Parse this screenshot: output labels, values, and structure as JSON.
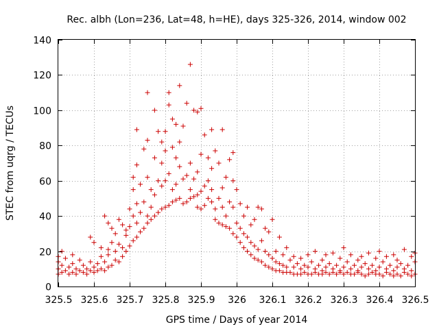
{
  "chart_data": {
    "type": "scatter",
    "title": "Rec. albh (Lon=236, Lat=48, h=HE), days 325-326, 2014, window 002",
    "xlabel": "GPS time / Days of year 2014",
    "ylabel": "STEC from uqrg / TECUs",
    "xlim": [
      325.5,
      326.5
    ],
    "ylim": [
      0,
      140
    ],
    "grid": true,
    "marker": "plus",
    "color": "#cc0000",
    "x_tick_labels": [
      "325.5",
      "325.6",
      "325.7",
      "325.8",
      "325.9",
      "326",
      "326.1",
      "326.2",
      "326.3",
      "326.4",
      "326.5"
    ],
    "y_tick_labels": [
      "0",
      "20",
      "40",
      "60",
      "80",
      "100",
      "120",
      "140"
    ],
    "series": [
      {
        "name": "STEC",
        "points": [
          [
            325.5,
            7
          ],
          [
            325.5,
            10
          ],
          [
            325.5,
            14
          ],
          [
            325.5,
            17
          ],
          [
            325.51,
            8
          ],
          [
            325.51,
            12
          ],
          [
            325.51,
            20
          ],
          [
            325.52,
            9
          ],
          [
            325.52,
            16
          ],
          [
            325.53,
            7
          ],
          [
            325.53,
            11
          ],
          [
            325.54,
            8
          ],
          [
            325.54,
            13
          ],
          [
            325.54,
            18
          ],
          [
            325.55,
            7
          ],
          [
            325.55,
            10
          ],
          [
            325.56,
            9
          ],
          [
            325.56,
            15
          ],
          [
            325.57,
            8
          ],
          [
            325.57,
            12
          ],
          [
            325.58,
            7
          ],
          [
            325.58,
            10
          ],
          [
            325.59,
            9
          ],
          [
            325.59,
            14
          ],
          [
            325.59,
            28
          ],
          [
            325.6,
            8
          ],
          [
            325.6,
            11
          ],
          [
            325.6,
            25
          ],
          [
            325.61,
            9
          ],
          [
            325.61,
            13
          ],
          [
            325.62,
            10
          ],
          [
            325.62,
            17
          ],
          [
            325.62,
            22
          ],
          [
            325.63,
            9
          ],
          [
            325.63,
            14
          ],
          [
            325.63,
            40
          ],
          [
            325.64,
            11
          ],
          [
            325.64,
            18
          ],
          [
            325.64,
            21
          ],
          [
            325.64,
            36
          ],
          [
            325.65,
            12
          ],
          [
            325.65,
            25
          ],
          [
            325.65,
            33
          ],
          [
            325.66,
            15
          ],
          [
            325.66,
            20
          ],
          [
            325.66,
            30
          ],
          [
            325.67,
            14
          ],
          [
            325.67,
            24
          ],
          [
            325.67,
            38
          ],
          [
            325.68,
            17
          ],
          [
            325.68,
            22
          ],
          [
            325.68,
            35
          ],
          [
            325.69,
            20
          ],
          [
            325.69,
            29
          ],
          [
            325.69,
            32
          ],
          [
            325.7,
            23
          ],
          [
            325.7,
            34
          ],
          [
            325.7,
            44
          ],
          [
            325.71,
            26
          ],
          [
            325.71,
            40
          ],
          [
            325.71,
            55
          ],
          [
            325.71,
            62
          ],
          [
            325.72,
            28
          ],
          [
            325.72,
            36
          ],
          [
            325.72,
            47
          ],
          [
            325.72,
            69
          ],
          [
            325.72,
            89
          ],
          [
            325.73,
            31
          ],
          [
            325.73,
            42
          ],
          [
            325.73,
            58
          ],
          [
            325.74,
            33
          ],
          [
            325.74,
            48
          ],
          [
            325.74,
            78
          ],
          [
            325.75,
            36
          ],
          [
            325.75,
            40
          ],
          [
            325.75,
            62
          ],
          [
            325.75,
            83
          ],
          [
            325.75,
            110
          ],
          [
            325.76,
            38
          ],
          [
            325.76,
            45
          ],
          [
            325.76,
            55
          ],
          [
            325.77,
            40
          ],
          [
            325.77,
            52
          ],
          [
            325.77,
            73
          ],
          [
            325.77,
            100
          ],
          [
            325.78,
            42
          ],
          [
            325.78,
            60
          ],
          [
            325.78,
            88
          ],
          [
            325.79,
            44
          ],
          [
            325.79,
            57
          ],
          [
            325.79,
            70
          ],
          [
            325.79,
            82
          ],
          [
            325.8,
            45
          ],
          [
            325.8,
            60
          ],
          [
            325.8,
            77
          ],
          [
            325.8,
            88
          ],
          [
            325.81,
            46
          ],
          [
            325.81,
            64
          ],
          [
            325.81,
            103
          ],
          [
            325.81,
            110
          ],
          [
            325.82,
            48
          ],
          [
            325.82,
            55
          ],
          [
            325.82,
            79
          ],
          [
            325.82,
            95
          ],
          [
            325.83,
            49
          ],
          [
            325.83,
            58
          ],
          [
            325.83,
            73
          ],
          [
            325.83,
            92
          ],
          [
            325.84,
            50
          ],
          [
            325.84,
            68
          ],
          [
            325.84,
            82
          ],
          [
            325.84,
            114
          ],
          [
            325.85,
            47
          ],
          [
            325.85,
            61
          ],
          [
            325.85,
            91
          ],
          [
            325.86,
            48
          ],
          [
            325.86,
            63
          ],
          [
            325.86,
            104
          ],
          [
            325.87,
            50
          ],
          [
            325.87,
            55
          ],
          [
            325.87,
            70
          ],
          [
            325.87,
            126
          ],
          [
            325.88,
            51
          ],
          [
            325.88,
            61
          ],
          [
            325.88,
            100
          ],
          [
            325.89,
            45
          ],
          [
            325.89,
            52
          ],
          [
            325.89,
            65
          ],
          [
            325.89,
            99
          ],
          [
            325.9,
            44
          ],
          [
            325.9,
            54
          ],
          [
            325.9,
            75
          ],
          [
            325.9,
            101
          ],
          [
            325.91,
            46
          ],
          [
            325.91,
            57
          ],
          [
            325.91,
            86
          ],
          [
            325.92,
            50
          ],
          [
            325.92,
            60
          ],
          [
            325.92,
            73
          ],
          [
            325.93,
            48
          ],
          [
            325.93,
            55
          ],
          [
            325.93,
            67
          ],
          [
            325.93,
            89
          ],
          [
            325.94,
            38
          ],
          [
            325.94,
            44
          ],
          [
            325.94,
            77
          ],
          [
            325.95,
            36
          ],
          [
            325.95,
            50
          ],
          [
            325.95,
            70
          ],
          [
            325.96,
            35
          ],
          [
            325.96,
            45
          ],
          [
            325.96,
            56
          ],
          [
            325.96,
            89
          ],
          [
            325.97,
            34
          ],
          [
            325.97,
            40
          ],
          [
            325.97,
            62
          ],
          [
            325.98,
            33
          ],
          [
            325.98,
            48
          ],
          [
            325.98,
            72
          ],
          [
            325.99,
            30
          ],
          [
            325.99,
            45
          ],
          [
            325.99,
            60
          ],
          [
            325.99,
            76
          ],
          [
            326.0,
            28
          ],
          [
            326.0,
            36
          ],
          [
            326.0,
            55
          ],
          [
            326.01,
            25
          ],
          [
            326.01,
            33
          ],
          [
            326.01,
            47
          ],
          [
            326.02,
            22
          ],
          [
            326.02,
            30
          ],
          [
            326.02,
            40
          ],
          [
            326.03,
            20
          ],
          [
            326.03,
            28
          ],
          [
            326.03,
            45
          ],
          [
            326.04,
            18
          ],
          [
            326.04,
            25
          ],
          [
            326.04,
            35
          ],
          [
            326.05,
            16
          ],
          [
            326.05,
            23
          ],
          [
            326.05,
            38
          ],
          [
            326.06,
            15
          ],
          [
            326.06,
            21
          ],
          [
            326.06,
            45
          ],
          [
            326.07,
            14
          ],
          [
            326.07,
            26
          ],
          [
            326.07,
            44
          ],
          [
            326.08,
            12
          ],
          [
            326.08,
            20
          ],
          [
            326.08,
            33
          ],
          [
            326.09,
            11
          ],
          [
            326.09,
            18
          ],
          [
            326.09,
            31
          ],
          [
            326.1,
            10
          ],
          [
            326.1,
            16
          ],
          [
            326.1,
            38
          ],
          [
            326.11,
            9
          ],
          [
            326.11,
            14
          ],
          [
            326.11,
            20
          ],
          [
            326.12,
            9
          ],
          [
            326.12,
            13
          ],
          [
            326.12,
            28
          ],
          [
            326.13,
            8
          ],
          [
            326.13,
            12
          ],
          [
            326.13,
            18
          ],
          [
            326.14,
            8
          ],
          [
            326.14,
            11
          ],
          [
            326.14,
            22
          ],
          [
            326.15,
            8
          ],
          [
            326.15,
            15
          ],
          [
            326.16,
            7
          ],
          [
            326.16,
            11
          ],
          [
            326.16,
            17
          ],
          [
            326.17,
            7
          ],
          [
            326.17,
            13
          ],
          [
            326.18,
            7
          ],
          [
            326.18,
            10
          ],
          [
            326.18,
            16
          ],
          [
            326.19,
            8
          ],
          [
            326.19,
            12
          ],
          [
            326.2,
            7
          ],
          [
            326.2,
            11
          ],
          [
            326.2,
            18
          ],
          [
            326.21,
            7
          ],
          [
            326.21,
            14
          ],
          [
            326.22,
            8
          ],
          [
            326.22,
            10
          ],
          [
            326.22,
            20
          ],
          [
            326.23,
            7
          ],
          [
            326.23,
            12
          ],
          [
            326.24,
            7
          ],
          [
            326.24,
            9
          ],
          [
            326.24,
            15
          ],
          [
            326.25,
            8
          ],
          [
            326.25,
            11
          ],
          [
            326.25,
            18
          ],
          [
            326.26,
            7
          ],
          [
            326.26,
            13
          ],
          [
            326.27,
            8
          ],
          [
            326.27,
            10
          ],
          [
            326.27,
            19
          ],
          [
            326.28,
            7
          ],
          [
            326.28,
            12
          ],
          [
            326.29,
            8
          ],
          [
            326.29,
            9
          ],
          [
            326.29,
            16
          ],
          [
            326.3,
            7
          ],
          [
            326.3,
            11
          ],
          [
            326.3,
            22
          ],
          [
            326.31,
            8
          ],
          [
            326.31,
            14
          ],
          [
            326.32,
            7
          ],
          [
            326.32,
            10
          ],
          [
            326.32,
            18
          ],
          [
            326.33,
            7
          ],
          [
            326.33,
            12
          ],
          [
            326.34,
            8
          ],
          [
            326.34,
            9
          ],
          [
            326.34,
            15
          ],
          [
            326.35,
            7
          ],
          [
            326.35,
            11
          ],
          [
            326.35,
            17
          ],
          [
            326.36,
            6
          ],
          [
            326.36,
            13
          ],
          [
            326.37,
            7
          ],
          [
            326.37,
            10
          ],
          [
            326.37,
            19
          ],
          [
            326.38,
            8
          ],
          [
            326.38,
            12
          ],
          [
            326.39,
            7
          ],
          [
            326.39,
            9
          ],
          [
            326.39,
            16
          ],
          [
            326.4,
            7
          ],
          [
            326.4,
            11
          ],
          [
            326.4,
            20
          ],
          [
            326.41,
            6
          ],
          [
            326.41,
            14
          ],
          [
            326.42,
            8
          ],
          [
            326.42,
            10
          ],
          [
            326.42,
            17
          ],
          [
            326.43,
            7
          ],
          [
            326.43,
            12
          ],
          [
            326.44,
            6
          ],
          [
            326.44,
            9
          ],
          [
            326.44,
            18
          ],
          [
            326.45,
            7
          ],
          [
            326.45,
            11
          ],
          [
            326.45,
            15
          ],
          [
            326.46,
            6
          ],
          [
            326.46,
            13
          ],
          [
            326.47,
            8
          ],
          [
            326.47,
            10
          ],
          [
            326.47,
            21
          ],
          [
            326.48,
            7
          ],
          [
            326.48,
            12
          ],
          [
            326.49,
            6
          ],
          [
            326.49,
            9
          ],
          [
            326.49,
            17
          ],
          [
            326.5,
            7
          ],
          [
            326.5,
            14
          ],
          [
            326.5,
            19
          ]
        ]
      }
    ]
  }
}
